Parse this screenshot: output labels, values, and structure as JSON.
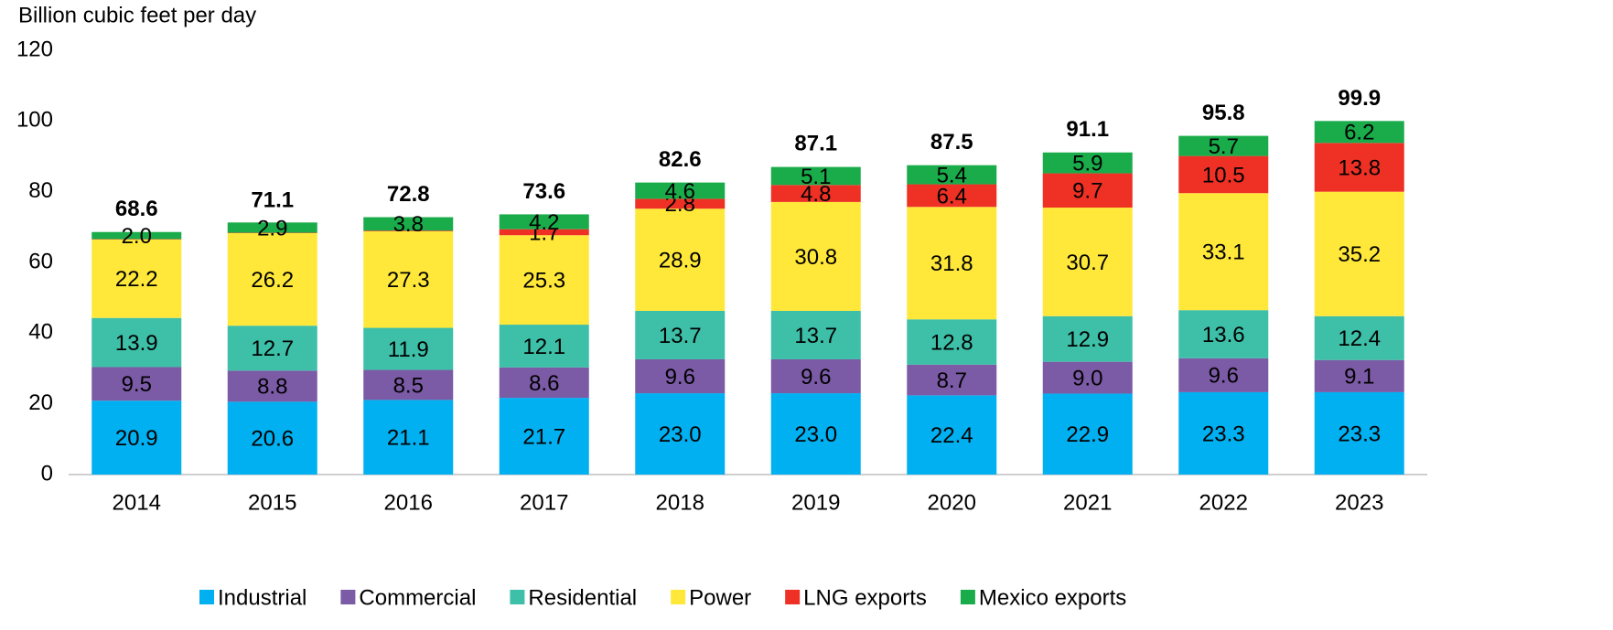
{
  "chart_data": {
    "type": "stacked_bar",
    "y_axis_label": "Billion cubic feet per day",
    "categories": [
      "2014",
      "2015",
      "2016",
      "2017",
      "2018",
      "2019",
      "2020",
      "2021",
      "2022",
      "2023"
    ],
    "series": [
      {
        "name": "Industrial",
        "color": "#00b0f0",
        "values": [
          20.9,
          20.6,
          21.1,
          21.7,
          23.0,
          23.0,
          22.4,
          22.9,
          23.3,
          23.3
        ],
        "value_labels": [
          "20.9",
          "20.6",
          "21.1",
          "21.7",
          "23.0",
          "23.0",
          "22.4",
          "22.9",
          "23.3",
          "23.3"
        ]
      },
      {
        "name": "Commercial",
        "color": "#7b5aa6",
        "values": [
          9.5,
          8.8,
          8.5,
          8.6,
          9.6,
          9.6,
          8.7,
          9.0,
          9.6,
          9.1
        ],
        "value_labels": [
          "9.5",
          "8.8",
          "8.5",
          "8.6",
          "9.6",
          "9.6",
          "8.7",
          "9.0",
          "9.6",
          "9.1"
        ]
      },
      {
        "name": "Residential",
        "color": "#3dbfa8",
        "values": [
          13.9,
          12.7,
          11.9,
          12.1,
          13.7,
          13.7,
          12.8,
          12.9,
          13.6,
          12.4
        ],
        "value_labels": [
          "13.9",
          "12.7",
          "11.9",
          "12.1",
          "13.7",
          "13.7",
          "12.8",
          "12.9",
          "13.6",
          "12.4"
        ]
      },
      {
        "name": "Power",
        "color": "#ffe83a",
        "values": [
          22.2,
          26.2,
          27.3,
          25.3,
          28.9,
          30.8,
          31.8,
          30.7,
          33.1,
          35.2
        ],
        "value_labels": [
          "22.2",
          "26.2",
          "27.3",
          "25.3",
          "28.9",
          "30.8",
          "31.8",
          "30.7",
          "33.1",
          "35.2"
        ]
      },
      {
        "name": "LNG exports",
        "color": "#ee3124",
        "values": [
          0.1,
          0.1,
          0.2,
          1.7,
          2.8,
          4.8,
          6.4,
          9.7,
          10.5,
          13.8
        ],
        "value_labels": [
          null,
          null,
          null,
          "1.7",
          "2.8",
          "4.8",
          "6.4",
          "9.7",
          "10.5",
          "13.8"
        ]
      },
      {
        "name": "Mexico exports",
        "color": "#1aac4a",
        "values": [
          2.0,
          2.9,
          3.8,
          4.2,
          4.6,
          5.1,
          5.4,
          5.9,
          5.7,
          6.2
        ],
        "value_labels": [
          "2.0",
          "2.9",
          "3.8",
          "4.2",
          "4.6",
          "5.1",
          "5.4",
          "5.9",
          "5.7",
          "6.2"
        ]
      }
    ],
    "totals": [
      68.6,
      71.1,
      72.8,
      73.6,
      82.6,
      87.1,
      87.5,
      91.1,
      95.8,
      99.9
    ],
    "ylim": [
      0,
      120
    ],
    "yticks": [
      0,
      20,
      40,
      60,
      80,
      100,
      120
    ],
    "grid": false,
    "legend": "bottom"
  }
}
